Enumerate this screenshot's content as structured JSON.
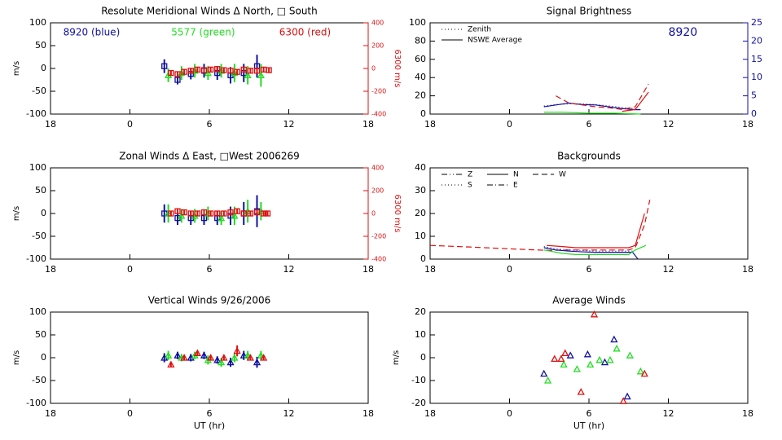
{
  "chart_data": [
    {
      "type": "errorbar",
      "title": "Resolute Meridional Winds Δ North, □ South",
      "ylabel": "m/s",
      "y2label": "6300 m/s",
      "y2color": "#dd1111",
      "annotations": [
        {
          "text": "8920 (blue)",
          "color": "#1010a0"
        },
        {
          "text": "5577 (green)",
          "color": "#22dd22"
        },
        {
          "text": "6300 (red)",
          "color": "#dd1111"
        }
      ],
      "xlim": [
        -6,
        18
      ],
      "xticks": [
        {
          "value": -6,
          "label": "18"
        },
        0,
        6,
        12,
        18
      ],
      "ylim": [
        -100,
        100
      ],
      "yticks": [
        -100,
        -50,
        0,
        50,
        100
      ],
      "y2lim": [
        -400,
        400
      ],
      "y2ticks": [
        -400,
        -200,
        0,
        200,
        400
      ],
      "series": [
        {
          "color": "#1010a0",
          "marker": "square",
          "x": [
            2.6,
            3.6,
            4.6,
            5.6,
            6.6,
            7.6,
            8.6,
            9.6
          ],
          "values": [
            5,
            -25,
            -12,
            -5,
            -10,
            -15,
            -10,
            5
          ],
          "errors": [
            15,
            10,
            12,
            15,
            15,
            18,
            20,
            25
          ]
        },
        {
          "color": "#22dd22",
          "marker": "triangle",
          "x": [
            2.9,
            3.9,
            4.9,
            5.9,
            6.9,
            7.9,
            8.9,
            9.9
          ],
          "values": [
            -15,
            -10,
            -5,
            -10,
            -5,
            -10,
            -15,
            -15
          ],
          "errors": [
            15,
            15,
            15,
            15,
            15,
            20,
            20,
            25
          ]
        },
        {
          "color": "#dd1111",
          "marker": "square",
          "axis": "y2",
          "x": [
            3.1,
            3.6,
            4.1,
            4.6,
            5.1,
            5.6,
            6.1,
            6.6,
            7.1,
            7.6,
            8.1,
            8.6,
            9.1,
            9.6,
            10.1,
            10.5
          ],
          "values": [
            -40,
            -50,
            -30,
            -20,
            -10,
            -15,
            -10,
            -5,
            -15,
            -20,
            -30,
            -10,
            -20,
            -20,
            -10,
            -15
          ],
          "errors": [
            20,
            20,
            20,
            20,
            20,
            20,
            20,
            20,
            20,
            20,
            20,
            20,
            20,
            20,
            20,
            20
          ]
        }
      ]
    },
    {
      "type": "line",
      "title": "Signal Brightness",
      "y2color": "#1010a0",
      "annotations": [
        {
          "text": "8920",
          "color": "#1010a0"
        }
      ],
      "legend": [
        {
          "label": "Zenith",
          "line": "dotted"
        },
        {
          "label": "NSWE Average",
          "line": "solid"
        }
      ],
      "legend_columns": 1,
      "xlim": [
        -6,
        18
      ],
      "xticks": [
        {
          "value": -6,
          "label": "18"
        },
        0,
        6,
        12,
        18
      ],
      "ylim": [
        0,
        100
      ],
      "yticks": [
        0,
        20,
        40,
        60,
        80,
        100
      ],
      "y2lim": [
        0,
        25
      ],
      "y2ticks": [
        0,
        5,
        10,
        15,
        20,
        25
      ],
      "series": [
        {
          "color": "#1010a0",
          "line": "solid",
          "axis": "y2",
          "x": [
            2.6,
            3.5,
            4.5,
            5.5,
            6.5,
            7.5,
            8.5,
            9.5,
            9.9
          ],
          "values": [
            2,
            2.5,
            3,
            2.6,
            2.5,
            2,
            1.5,
            1.2,
            1.2
          ]
        },
        {
          "color": "#1010a0",
          "line": "dotted",
          "axis": "y2",
          "x": [
            2.6,
            3.5,
            4.5,
            5.5,
            6.5,
            7.5,
            8.5,
            9.5,
            9.9
          ],
          "values": [
            2.2,
            2.6,
            2.8,
            2.8,
            2.6,
            2.2,
            1.8,
            1.4,
            1.2
          ]
        },
        {
          "color": "#22dd22",
          "line": "solid",
          "x": [
            2.6,
            4,
            6,
            8,
            9.9
          ],
          "values": [
            2,
            2,
            1,
            1,
            0
          ]
        },
        {
          "color": "#dd1111",
          "line": "dashed",
          "x": [
            3.5,
            4.5,
            5.5,
            6.5,
            7.5,
            8.5,
            9.5,
            10.5
          ],
          "values": [
            20,
            12,
            10,
            8,
            7,
            5,
            8,
            33
          ]
        },
        {
          "color": "#dd1111",
          "line": "solid",
          "x": [
            8.5,
            9.5,
            10.5
          ],
          "values": [
            3,
            5,
            24
          ]
        }
      ]
    },
    {
      "type": "errorbar",
      "title": "Zonal Winds Δ East, □West 2006269",
      "ylabel": "m/s",
      "y2label": "6300 m/s",
      "y2color": "#dd1111",
      "xlim": [
        -6,
        18
      ],
      "xticks": [
        {
          "value": -6,
          "label": "18"
        },
        0,
        6,
        12,
        18
      ],
      "ylim": [
        -100,
        100
      ],
      "yticks": [
        -100,
        -50,
        0,
        50,
        100
      ],
      "y2lim": [
        -400,
        400
      ],
      "y2ticks": [
        -400,
        -200,
        0,
        200,
        400
      ],
      "series": [
        {
          "color": "#1010a0",
          "marker": "square",
          "x": [
            2.6,
            3.6,
            4.6,
            5.6,
            6.6,
            7.6,
            8.6,
            9.6
          ],
          "values": [
            0,
            -10,
            -10,
            -10,
            -10,
            -5,
            0,
            5
          ],
          "errors": [
            20,
            15,
            15,
            15,
            15,
            20,
            25,
            35
          ]
        },
        {
          "color": "#22dd22",
          "marker": "triangle",
          "x": [
            2.9,
            3.9,
            4.9,
            5.9,
            6.9,
            7.9,
            8.9,
            9.9
          ],
          "values": [
            0,
            -5,
            -5,
            0,
            -10,
            -5,
            5,
            5
          ],
          "errors": [
            20,
            15,
            15,
            15,
            15,
            20,
            25,
            20
          ]
        },
        {
          "color": "#dd1111",
          "marker": "square",
          "axis": "y2",
          "x": [
            3.1,
            3.6,
            4.1,
            4.6,
            5.1,
            5.6,
            6.1,
            6.6,
            7.1,
            7.6,
            8.1,
            8.6,
            9.1,
            9.6,
            10.1,
            10.4
          ],
          "values": [
            0,
            20,
            10,
            0,
            0,
            10,
            0,
            0,
            0,
            10,
            20,
            0,
            0,
            10,
            0,
            0
          ],
          "errors": [
            20,
            20,
            20,
            20,
            20,
            20,
            20,
            20,
            20,
            20,
            20,
            20,
            20,
            20,
            20,
            20
          ]
        }
      ]
    },
    {
      "type": "line",
      "title": "Backgrounds",
      "legend": [
        {
          "label": "Z",
          "line": "dashdotdot"
        },
        {
          "label": "N",
          "line": "solid"
        },
        {
          "label": "W",
          "line": "dashed"
        },
        {
          "label": "S",
          "line": "dotted"
        },
        {
          "label": "E",
          "line": "dashdot"
        }
      ],
      "legend_columns": 3,
      "xlim": [
        -6,
        18
      ],
      "xticks": [
        {
          "value": -6,
          "label": "18"
        },
        0,
        6,
        12,
        18
      ],
      "ylim": [
        0,
        40
      ],
      "yticks": [
        0,
        10,
        20,
        30,
        40
      ],
      "series": [
        {
          "color": "#dd1111",
          "line": "dashed",
          "x": [
            -6,
            -3,
            0,
            3,
            4,
            5,
            6,
            7,
            8,
            9,
            9.5,
            10.2,
            10.6
          ],
          "values": [
            6,
            5.3,
            4.5,
            3.8,
            4,
            4,
            4,
            4,
            4,
            4,
            5,
            15,
            26
          ]
        },
        {
          "color": "#dd1111",
          "line": "solid",
          "x": [
            2.8,
            4,
            5,
            6,
            7,
            8,
            9,
            9.5,
            10.2
          ],
          "values": [
            6,
            5.5,
            5,
            5,
            5,
            5,
            5,
            6,
            20
          ]
        },
        {
          "color": "#1010a0",
          "line": "solid",
          "x": [
            2.6,
            3.5,
            4.5,
            5.5,
            6.5,
            7.5,
            8.5,
            9.3,
            9.7
          ],
          "values": [
            5,
            4,
            3.5,
            3.2,
            3,
            3,
            3,
            3,
            0
          ]
        },
        {
          "color": "#1010a0",
          "line": "dotted",
          "x": [
            2.6,
            3.5,
            4.5,
            5.5,
            6.5,
            7.5,
            8.5,
            9.3
          ],
          "values": [
            5.5,
            4.5,
            4,
            3.8,
            3.5,
            3.5,
            3.5,
            3.5
          ]
        },
        {
          "color": "#22dd22",
          "line": "solid",
          "x": [
            2.6,
            4,
            5,
            6,
            7,
            8,
            9,
            9.5,
            10.3
          ],
          "values": [
            4,
            2.5,
            2,
            2,
            2,
            2,
            2,
            4,
            6
          ]
        }
      ]
    },
    {
      "type": "errorbar",
      "title": "Vertical Winds 9/26/2006",
      "ylabel": "m/s",
      "xlabel": "UT (hr)",
      "xlim": [
        -6,
        18
      ],
      "xticks": [
        {
          "value": -6,
          "label": "18"
        },
        0,
        6,
        12,
        18
      ],
      "ylim": [
        -100,
        100
      ],
      "yticks": [
        -100,
        -50,
        0,
        50,
        100
      ],
      "series": [
        {
          "color": "#1010a0",
          "marker": "triangle",
          "x": [
            2.6,
            3.6,
            4.6,
            5.6,
            6.6,
            7.6,
            8.6,
            9.6
          ],
          "values": [
            0,
            5,
            0,
            5,
            -5,
            -10,
            5,
            -10
          ],
          "errors": [
            10,
            8,
            8,
            8,
            8,
            10,
            10,
            12
          ]
        },
        {
          "color": "#22dd22",
          "marker": "triangle",
          "x": [
            2.9,
            3.9,
            4.9,
            5.9,
            6.9,
            7.9,
            8.9,
            9.9
          ],
          "values": [
            5,
            0,
            5,
            -5,
            -10,
            0,
            5,
            5
          ],
          "errors": [
            10,
            8,
            8,
            10,
            10,
            10,
            10,
            10
          ]
        },
        {
          "color": "#dd1111",
          "marker": "triangle",
          "x": [
            3.1,
            4.1,
            5.1,
            6.1,
            7.1,
            8.1,
            9.1,
            10.1
          ],
          "values": [
            -15,
            0,
            10,
            0,
            0,
            15,
            0,
            0
          ],
          "errors": [
            5,
            5,
            5,
            5,
            5,
            12,
            5,
            5
          ]
        }
      ]
    },
    {
      "type": "scatter",
      "title": "Average Winds",
      "ylabel": "m/s",
      "xlabel": "UT (hr)",
      "xlim": [
        -6,
        18
      ],
      "xticks": [
        {
          "value": -6,
          "label": "18"
        },
        0,
        6,
        12,
        18
      ],
      "ylim": [
        -20,
        20
      ],
      "yticks": [
        -20,
        -10,
        0,
        10,
        20
      ],
      "series": [
        {
          "color": "#1010a0",
          "marker": "triangle",
          "x": [
            2.6,
            4.6,
            5.9,
            7.2,
            7.9,
            8.9
          ],
          "values": [
            -7,
            1,
            1.5,
            -2,
            8,
            -17
          ]
        },
        {
          "color": "#22dd22",
          "marker": "triangle",
          "x": [
            2.9,
            4.1,
            5.1,
            6.1,
            6.8,
            7.6,
            8.1,
            9.1,
            9.9
          ],
          "values": [
            -10,
            -3,
            -5,
            -3,
            -1,
            -1,
            4,
            1,
            -6
          ]
        },
        {
          "color": "#dd1111",
          "marker": "triangle",
          "x": [
            3.4,
            3.9,
            4.2,
            5.4,
            6.4,
            8.6,
            10.2
          ],
          "values": [
            -0.5,
            -0.5,
            2,
            -15,
            19,
            -19,
            -7
          ]
        }
      ]
    }
  ]
}
